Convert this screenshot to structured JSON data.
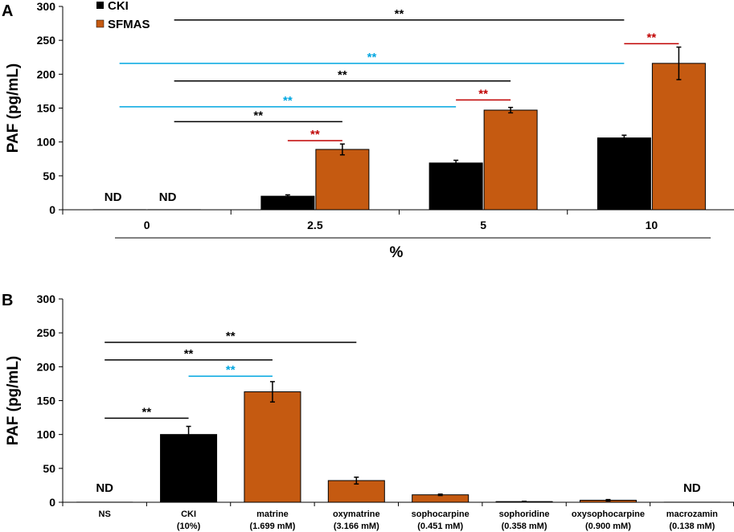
{
  "colors": {
    "cki": "#000000",
    "sfmas": "#c55a11",
    "black_sig": "#000000",
    "blue_sig": "#00a6e0",
    "red_sig": "#c00000"
  },
  "chart_data": [
    {
      "panel": "A",
      "type": "bar",
      "ylabel": "PAF (pg/mL)",
      "xlabel": "%",
      "ylim": [
        0,
        300
      ],
      "yticks": [
        "0",
        "50",
        "100",
        "150",
        "200",
        "250",
        "300"
      ],
      "categories": [
        "0",
        "2.5",
        "5",
        "10"
      ],
      "series": [
        {
          "name": "CKI",
          "color": "#000000",
          "values": [
            0,
            20,
            69,
            106
          ],
          "errors": [
            0,
            2,
            4,
            4
          ],
          "labels": [
            "ND",
            "",
            "",
            ""
          ]
        },
        {
          "name": "SFMAS",
          "color": "#c55a11",
          "values": [
            0,
            89,
            147,
            216
          ],
          "errors": [
            0,
            8,
            4,
            24
          ],
          "labels": [
            "ND",
            "",
            "",
            ""
          ]
        }
      ],
      "legend": [
        "CKI",
        "SFMAS"
      ],
      "legend_position": "top-left",
      "significance": [
        {
          "from": [
            0,
            1
          ],
          "to": [
            3,
            0
          ],
          "text": "**",
          "color": "black",
          "y": 280
        },
        {
          "from": [
            3,
            0
          ],
          "to": [
            3,
            1
          ],
          "text": "**",
          "color": "red",
          "y": 245
        },
        {
          "from": [
            0,
            0
          ],
          "to": [
            3,
            0
          ],
          "text": "**",
          "color": "blue",
          "y": 216
        },
        {
          "from": [
            0,
            1
          ],
          "to": [
            2,
            1
          ],
          "text": "**",
          "color": "black",
          "y": 190
        },
        {
          "from": [
            0,
            0
          ],
          "to": [
            2,
            0
          ],
          "text": "**",
          "color": "blue",
          "y": 152
        },
        {
          "from": [
            2,
            0
          ],
          "to": [
            2,
            1
          ],
          "text": "**",
          "color": "red",
          "y": 162
        },
        {
          "from": [
            0,
            1
          ],
          "to": [
            1,
            1
          ],
          "text": "**",
          "color": "black",
          "y": 130
        },
        {
          "from": [
            1,
            0
          ],
          "to": [
            1,
            1
          ],
          "text": "**",
          "color": "red",
          "y": 102
        }
      ]
    },
    {
      "panel": "B",
      "type": "bar",
      "ylabel": "PAF (pg/mL)",
      "ylim": [
        0,
        300
      ],
      "yticks": [
        "0",
        "50",
        "100",
        "150",
        "200",
        "250",
        "300"
      ],
      "categories": [
        {
          "name": "NS",
          "sub": ""
        },
        {
          "name": "CKI",
          "sub": "(10%)"
        },
        {
          "name": "matrine",
          "sub": "(1.699 mM)"
        },
        {
          "name": "oxymatrine",
          "sub": "(3.166 mM)"
        },
        {
          "name": "sophocarpine",
          "sub": "(0.451 mM)"
        },
        {
          "name": "sophoridine",
          "sub": "(0.358 mM)"
        },
        {
          "name": "oxysophocarpine",
          "sub": "(0.900 mM)"
        },
        {
          "name": "macrozamin",
          "sub": "(0.138 mM)"
        }
      ],
      "values": [
        0,
        100,
        163,
        32,
        11,
        1,
        3,
        0
      ],
      "errors": [
        0,
        12,
        15,
        5,
        1,
        0.5,
        1,
        0
      ],
      "colors": [
        "cki",
        "cki",
        "sfmas",
        "sfmas",
        "sfmas",
        "sfmas",
        "sfmas",
        "sfmas"
      ],
      "labels": [
        "ND",
        "",
        "",
        "",
        "",
        "",
        "",
        "ND"
      ],
      "significance": [
        {
          "from": 0,
          "to": 3,
          "text": "**",
          "color": "black",
          "y": 236
        },
        {
          "from": 0,
          "to": 2,
          "text": "**",
          "color": "black",
          "y": 210
        },
        {
          "from": 1,
          "to": 2,
          "text": "**",
          "color": "blue",
          "y": 186
        },
        {
          "from": 0,
          "to": 1,
          "text": "**",
          "color": "black",
          "y": 124
        }
      ]
    }
  ]
}
